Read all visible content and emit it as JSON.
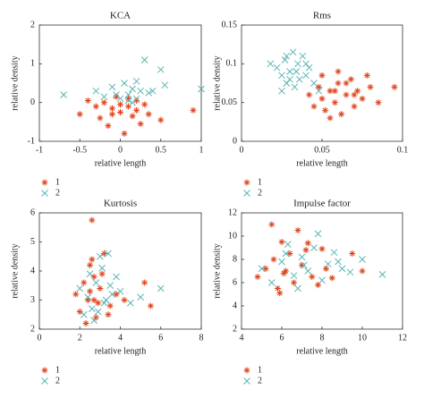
{
  "chart_data": [
    {
      "type": "scatter",
      "title": "KCA",
      "x_label": "relative length",
      "y_label": "relative density",
      "xlim": [
        -1,
        1
      ],
      "xticks": [
        -1,
        -0.5,
        0,
        0.5,
        1
      ],
      "ylim": [
        -1,
        2
      ],
      "yticks": [
        -1,
        0,
        1,
        2
      ],
      "series": [
        {
          "name": "1",
          "color": "#e0441c",
          "marker": "asterisk",
          "x": [
            -0.3,
            -0.2,
            -0.1,
            0,
            0.1,
            0.2,
            -0.15,
            0.05,
            0.15,
            -0.25,
            0.3,
            -0.05,
            0.1,
            0.5,
            0.9,
            -0.5,
            -0.4,
            0.25,
            0,
            -0.1,
            0.2,
            0.35
          ],
          "values": [
            -0.1,
            0,
            -0.3,
            -0.05,
            0.1,
            -0.2,
            -0.6,
            -0.8,
            -0.35,
            -0.4,
            -0.05,
            0.15,
            -0.1,
            -0.45,
            -0.2,
            -0.3,
            0.05,
            -0.55,
            -0.25,
            -0.15,
            0.05,
            -0.3
          ]
        },
        {
          "name": "2",
          "color": "#5ab4b4",
          "marker": "x",
          "x": [
            -0.7,
            -0.3,
            -0.2,
            -0.1,
            0,
            0.05,
            0.1,
            0.15,
            0.2,
            0.25,
            0.3,
            0.35,
            0.5,
            0.55,
            1.0,
            0.1,
            -0.05,
            0.2,
            0.4,
            0.15
          ],
          "values": [
            0.2,
            0.3,
            0.15,
            0.4,
            0.1,
            0.5,
            0.2,
            0.35,
            0.1,
            0.3,
            1.1,
            0.25,
            0.85,
            0.45,
            0.35,
            0.05,
            0.2,
            0.55,
            0.3,
            0
          ]
        }
      ]
    },
    {
      "type": "scatter",
      "title": "Rms",
      "x_label": "relative length",
      "y_label": "relative density",
      "xlim": [
        0,
        0.1
      ],
      "xticks": [
        0,
        0.05,
        0.1
      ],
      "ylim": [
        0,
        0.15
      ],
      "yticks": [
        0,
        0.05,
        0.1,
        0.15
      ],
      "series": [
        {
          "name": "1",
          "color": "#e0441c",
          "marker": "asterisk",
          "x": [
            0.042,
            0.045,
            0.048,
            0.05,
            0.052,
            0.055,
            0.058,
            0.06,
            0.062,
            0.065,
            0.068,
            0.07,
            0.072,
            0.075,
            0.078,
            0.08,
            0.085,
            0.095,
            0.055,
            0.06,
            0.05,
            0.065,
            0.07,
            0.058
          ],
          "values": [
            0.06,
            0.045,
            0.07,
            0.055,
            0.04,
            0.065,
            0.05,
            0.075,
            0.035,
            0.06,
            0.08,
            0.045,
            0.065,
            0.055,
            0.085,
            0.07,
            0.05,
            0.07,
            0.03,
            0.09,
            0.085,
            0.075,
            0.06,
            0.065
          ]
        },
        {
          "name": "2",
          "color": "#5ab4b4",
          "marker": "x",
          "x": [
            0.018,
            0.022,
            0.025,
            0.027,
            0.028,
            0.03,
            0.032,
            0.033,
            0.035,
            0.036,
            0.038,
            0.04,
            0.042,
            0.045,
            0.048,
            0.025,
            0.03,
            0.034,
            0.028,
            0.04
          ],
          "values": [
            0.1,
            0.095,
            0.085,
            0.105,
            0.075,
            0.09,
            0.115,
            0.07,
            0.1,
            0.08,
            0.11,
            0.085,
            0.095,
            0.075,
            0.065,
            0.065,
            0.08,
            0.09,
            0.11,
            0.1
          ]
        }
      ]
    },
    {
      "type": "scatter",
      "title": "Kurtosis",
      "x_label": "relative length",
      "y_label": "relative density",
      "xlim": [
        0,
        8
      ],
      "xticks": [
        0,
        2,
        4,
        6,
        8
      ],
      "ylim": [
        2,
        6
      ],
      "yticks": [
        2,
        3,
        4,
        5,
        6
      ],
      "series": [
        {
          "name": "1",
          "color": "#e0441c",
          "marker": "asterisk",
          "x": [
            1.8,
            2,
            2.2,
            2.4,
            2.5,
            2.6,
            2.7,
            2.8,
            3,
            3.2,
            3.5,
            3.8,
            4.2,
            5.2,
            5.5,
            2.6,
            2.3,
            3.1,
            2.9,
            2.5,
            2.7,
            3.4
          ],
          "values": [
            3.2,
            2.6,
            3.6,
            3,
            4.2,
            5.75,
            3.8,
            2.4,
            3.4,
            4.6,
            2.8,
            3.2,
            3,
            3.6,
            2.8,
            4.4,
            2.2,
            3.9,
            2.9,
            3.3,
            3,
            2.5
          ]
        },
        {
          "name": "2",
          "color": "#5ab4b4",
          "marker": "x",
          "x": [
            2,
            2.2,
            2.4,
            2.6,
            2.8,
            3,
            3.2,
            3.4,
            3.6,
            3.8,
            4,
            4.5,
            5,
            6,
            2.7,
            3.1,
            2.5,
            3.3,
            2.9,
            3.5
          ],
          "values": [
            3.4,
            2.5,
            3.1,
            2.7,
            3.6,
            4.5,
            2.9,
            4.6,
            3.2,
            3.8,
            3.3,
            2.9,
            3.1,
            3.4,
            2.3,
            4.1,
            3.9,
            3,
            2.6,
            3.5
          ]
        }
      ]
    },
    {
      "type": "scatter",
      "title": "Impulse factor",
      "x_label": "relative length",
      "y_label": "relative density",
      "xlim": [
        4,
        12
      ],
      "xticks": [
        4,
        6,
        8,
        10,
        12
      ],
      "ylim": [
        2,
        12
      ],
      "yticks": [
        2,
        4,
        6,
        8,
        10,
        12
      ],
      "series": [
        {
          "name": "1",
          "color": "#e0441c",
          "marker": "asterisk",
          "x": [
            4.8,
            5.2,
            5.5,
            5.6,
            5.8,
            6,
            6.2,
            6.4,
            6.6,
            6.8,
            7,
            7.2,
            7.5,
            7.8,
            8,
            8.2,
            8.5,
            9.5,
            10,
            6.1,
            7.3,
            5.9
          ],
          "values": [
            6.5,
            7.2,
            11,
            8,
            5.5,
            9.5,
            7,
            8.5,
            6,
            10.5,
            7.5,
            8.8,
            6.5,
            5.8,
            8.9,
            7.2,
            6.4,
            8.5,
            7,
            6.8,
            9.4,
            5.1
          ]
        },
        {
          "name": "2",
          "color": "#5ab4b4",
          "marker": "x",
          "x": [
            5,
            5.5,
            6,
            6.3,
            6.6,
            7,
            7.3,
            7.6,
            8,
            8.3,
            8.6,
            9,
            9.4,
            10,
            11,
            6.8,
            7.8,
            6.2,
            7.1,
            8.8
          ],
          "values": [
            7.2,
            6,
            7.8,
            9.3,
            6.6,
            8.2,
            7,
            9,
            6.2,
            7.6,
            8.6,
            7.2,
            6.9,
            8,
            6.7,
            5.5,
            10.2,
            8.5,
            7.5,
            7.8
          ]
        }
      ]
    }
  ]
}
